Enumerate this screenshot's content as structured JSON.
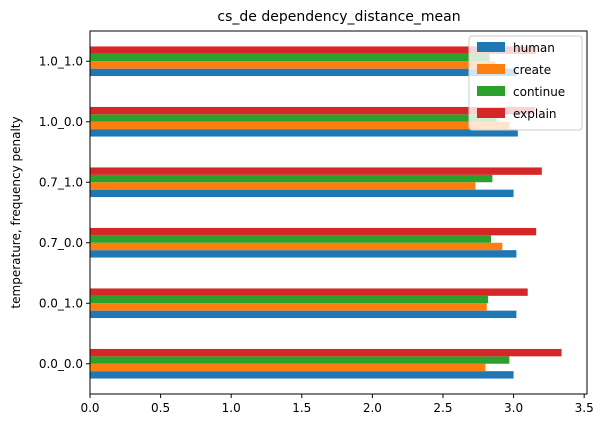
{
  "chart_data": {
    "type": "bar",
    "orientation": "horizontal",
    "title": "cs_de dependency_distance_mean",
    "xlabel": "",
    "ylabel": "temperature, frequency penalty",
    "categories": [
      "0.0_0.0",
      "0.0_1.0",
      "0.7_0.0",
      "0.7_1.0",
      "1.0_0.0",
      "1.0_1.0"
    ],
    "series": [
      {
        "name": "human",
        "color": "#1f77b4",
        "values": [
          3.0,
          3.02,
          3.02,
          3.0,
          3.03,
          3.02
        ]
      },
      {
        "name": "create",
        "color": "#ff7f0e",
        "values": [
          2.8,
          2.81,
          2.92,
          2.73,
          2.97,
          2.87
        ]
      },
      {
        "name": "continue",
        "color": "#2ca02c",
        "values": [
          2.97,
          2.82,
          2.84,
          2.85,
          2.88,
          2.83
        ]
      },
      {
        "name": "explain",
        "color": "#d62728",
        "values": [
          3.34,
          3.1,
          3.16,
          3.2,
          3.15,
          3.16
        ]
      }
    ],
    "xlim": [
      0,
      3.52
    ],
    "xticks": [
      "0.0",
      "0.5",
      "1.0",
      "1.5",
      "2.0",
      "2.5",
      "3.0",
      "3.5"
    ],
    "grid": false,
    "legend": "upper right"
  }
}
